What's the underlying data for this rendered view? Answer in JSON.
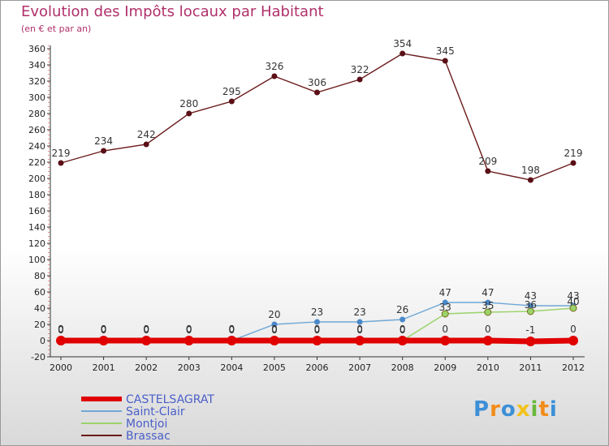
{
  "title": "Evolution des Impôts locaux par Habitant",
  "subtitle": "(en € et par an)",
  "logo": {
    "text": "Proxiti",
    "letters": [
      "P",
      "r",
      "o",
      "x",
      "i",
      "t",
      "i"
    ],
    "colors": [
      "#3d8fd6",
      "#f28c1a",
      "#3d8fd6",
      "#f2c21a",
      "#6ab83a",
      "#f28c1a",
      "#3d8fd6"
    ]
  },
  "chart_data": {
    "type": "line",
    "title": "Evolution des Impôts locaux par Habitant",
    "ylabel": "(en € et par an)",
    "x": [
      "2000",
      "2001",
      "2002",
      "2003",
      "2004",
      "2005",
      "2006",
      "2007",
      "2008",
      "2009",
      "2010",
      "2011",
      "2012"
    ],
    "ylim": [
      -20,
      360
    ],
    "yticks": [
      -20,
      0,
      20,
      40,
      60,
      80,
      100,
      120,
      140,
      160,
      180,
      200,
      220,
      240,
      260,
      280,
      300,
      320,
      340,
      360
    ],
    "grid": false,
    "series": [
      {
        "name": "Brassac",
        "color": "#6b1a1a",
        "values": [
          219,
          234,
          242,
          280,
          295,
          326,
          306,
          322,
          354,
          345,
          209,
          198,
          219
        ],
        "labels": [
          "219",
          "234",
          "242",
          "280",
          "295",
          "326",
          "306",
          "322",
          "354",
          "345",
          "209",
          "198",
          "219"
        ]
      },
      {
        "name": "Saint-Clair",
        "color": "#6fa8d6",
        "values": [
          0,
          0,
          0,
          0,
          0,
          20,
          23,
          23,
          26,
          47,
          47,
          43,
          43
        ],
        "labels": [
          "0",
          "0",
          "0",
          "0",
          "0",
          "20",
          "23",
          "23",
          "26",
          "47",
          "47",
          "43",
          "43"
        ]
      },
      {
        "name": "Montjoi",
        "color": "#9ad36a",
        "values": [
          0,
          0,
          0,
          0,
          0,
          0,
          0,
          0,
          0,
          33,
          35,
          36,
          40
        ],
        "labels": [
          "0",
          "0",
          "0",
          "0",
          "0",
          "0",
          "0",
          "0",
          "0",
          "33",
          "35",
          "36",
          "40"
        ]
      },
      {
        "name": "CASTELSAGRAT",
        "color": "#e00000",
        "values": [
          0,
          0,
          0,
          0,
          0,
          0,
          0,
          0,
          0,
          0,
          0,
          -1,
          0
        ],
        "labels": [
          "0",
          "0",
          "0",
          "0",
          "0",
          "0",
          "0",
          "0",
          "0",
          "0",
          "0",
          "-1",
          "0"
        ]
      }
    ],
    "legend": [
      "CASTELSAGRAT",
      "Saint-Clair",
      "Montjoi",
      "Brassac"
    ]
  }
}
